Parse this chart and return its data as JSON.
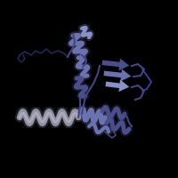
{
  "background_color": "#000000",
  "figure_size": [
    2.0,
    2.0
  ],
  "dpi": 100,
  "main_blue": "#6B72B0",
  "dark_blue": "#4A4E8A",
  "light_blue": "#8890C8",
  "gray_color": "#8A8A9A",
  "gray_light": "#AAAABC",
  "loop_dark": "#303060",
  "loop_mid": "#454580"
}
